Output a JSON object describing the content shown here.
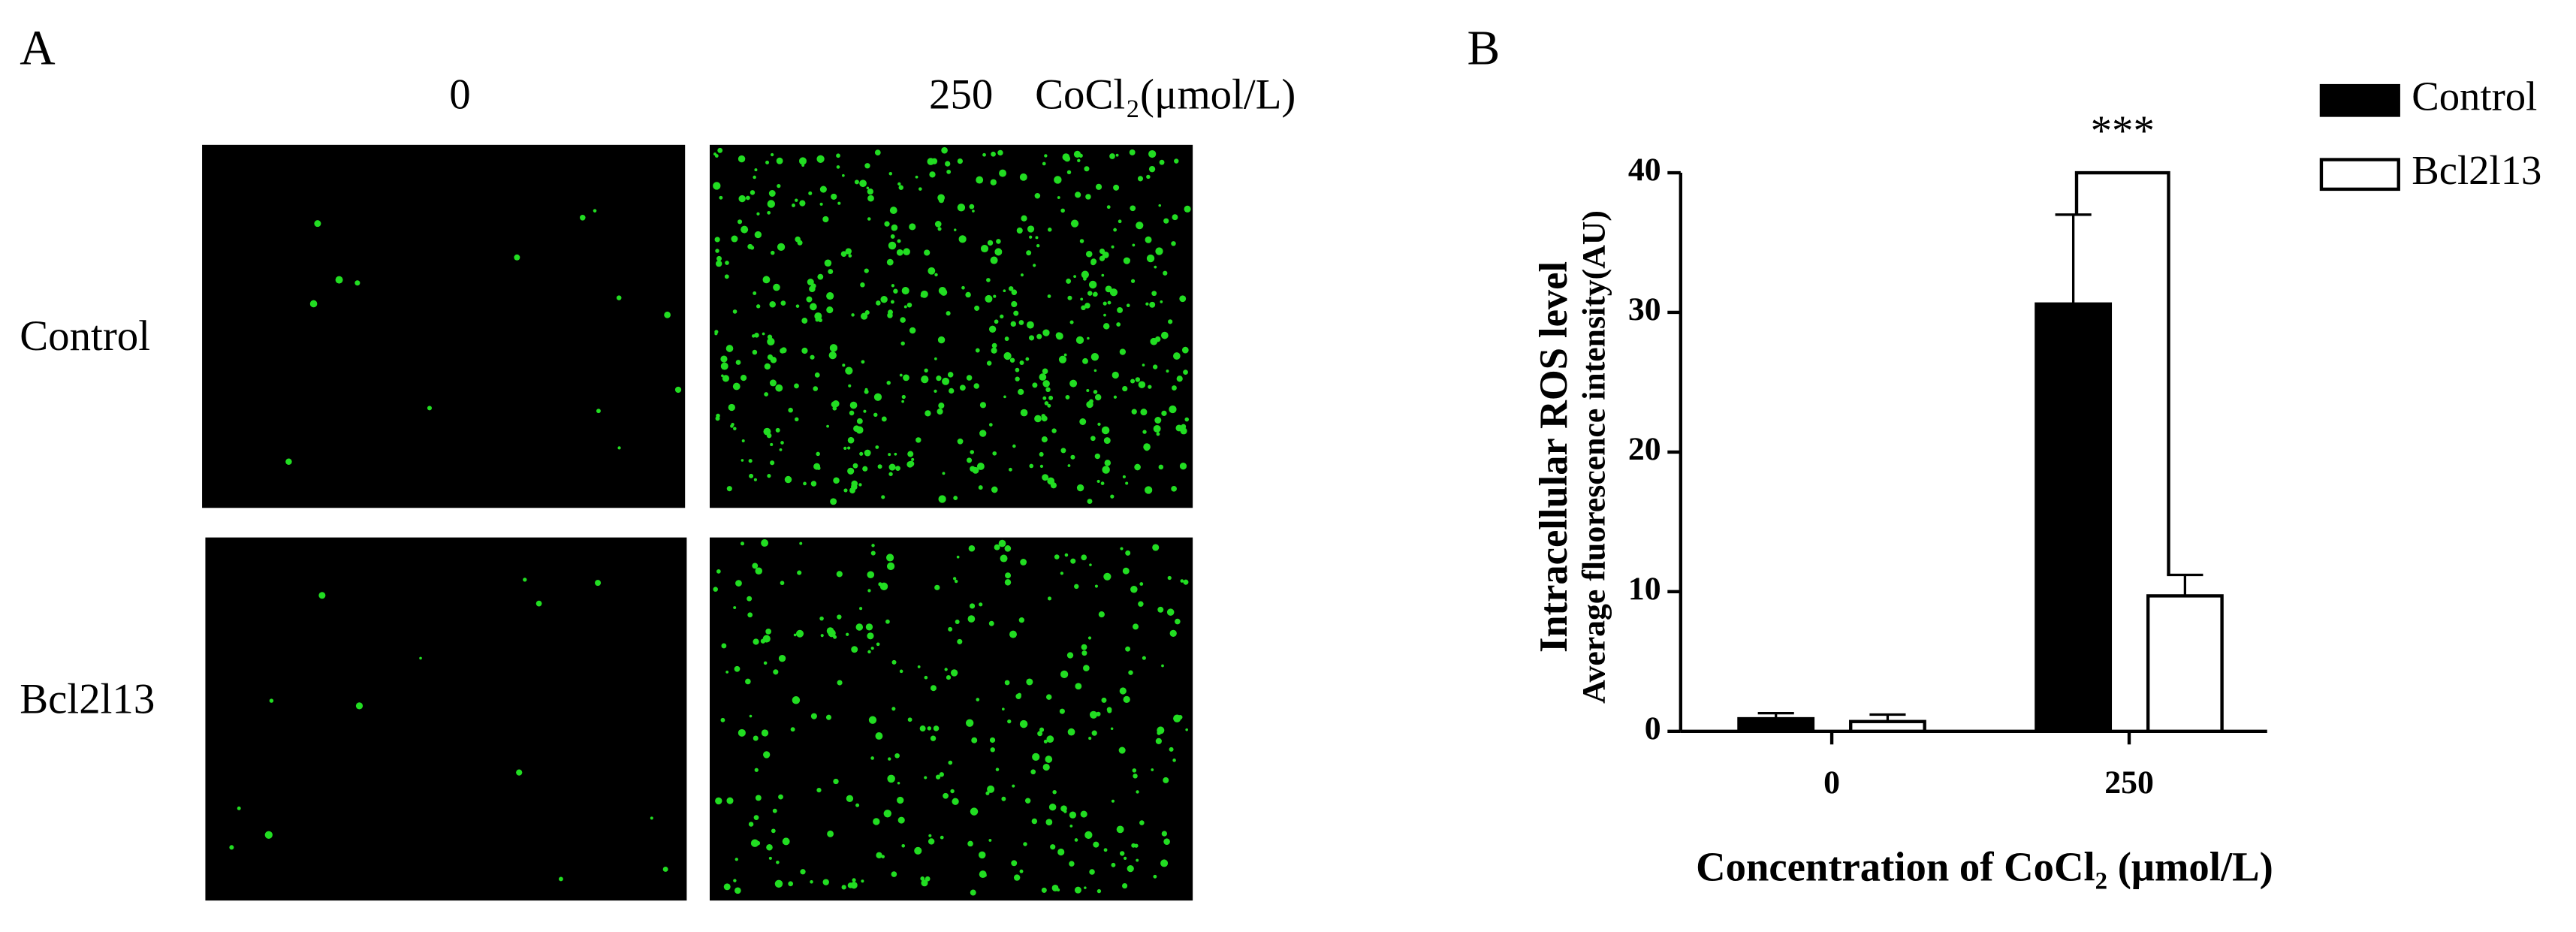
{
  "panel_a": {
    "label": "A",
    "column_labels": [
      "0",
      "250"
    ],
    "column_unit": "CoCl₂(μmol/L)",
    "row_labels": [
      "Control",
      "Bcl2l13"
    ]
  },
  "chart_data": {
    "type": "bar",
    "panel_label": "B",
    "y_label": [
      "Intracellular ROS level",
      "Average fluorescence intensity(AU)"
    ],
    "x_label": "Concentration of CoCl₂ (μmol/L)",
    "categories": [
      "0",
      "250"
    ],
    "series": [
      {
        "name": "Control",
        "color": "#000000",
        "values": [
          0.9,
          30.6
        ],
        "errors": [
          0.4,
          6.4
        ]
      },
      {
        "name": "Bcl2l13",
        "color": "#ffffff",
        "values": [
          0.7,
          9.7
        ],
        "errors": [
          0.5,
          1.5
        ]
      }
    ],
    "ylim": [
      0,
      40
    ],
    "yticks": [
      0,
      10,
      20,
      30,
      40
    ],
    "annotation": "***",
    "legend": "top-right"
  }
}
